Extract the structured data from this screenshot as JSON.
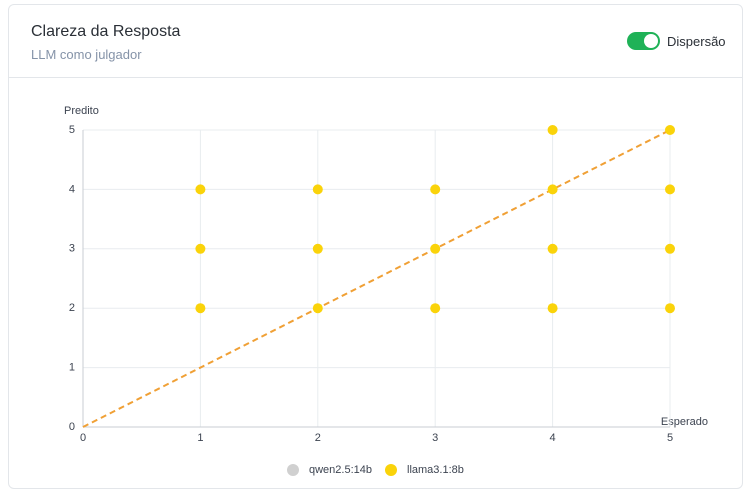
{
  "header": {
    "title": "Clareza da Resposta",
    "subtitle": "LLM como julgador"
  },
  "toggle": {
    "label": "Dispersão",
    "on": true
  },
  "chart_data": {
    "type": "scatter",
    "xlabel": "Esperado",
    "ylabel": "Predito",
    "xlim": [
      0,
      5
    ],
    "ylim": [
      0,
      5
    ],
    "xticks": [
      0,
      1,
      2,
      3,
      4,
      5
    ],
    "yticks": [
      0,
      1,
      2,
      3,
      4,
      5
    ],
    "grid": true,
    "diagonal": {
      "x": [
        0,
        5
      ],
      "y": [
        0,
        5
      ],
      "color": "#f0a035"
    },
    "series": [
      {
        "name": "qwen2.5:14b",
        "color": "#d0d0d0",
        "visible": false,
        "x": [],
        "y": []
      },
      {
        "name": "llama3.1:8b",
        "color": "#fad30a",
        "visible": true,
        "x": [
          1,
          1,
          1,
          2,
          2,
          2,
          3,
          3,
          3,
          4,
          4,
          4,
          4,
          5,
          5,
          5,
          5
        ],
        "y": [
          4,
          3,
          2,
          4,
          3,
          2,
          4,
          3,
          2,
          5,
          4,
          3,
          2,
          5,
          4,
          3,
          2
        ]
      }
    ]
  }
}
